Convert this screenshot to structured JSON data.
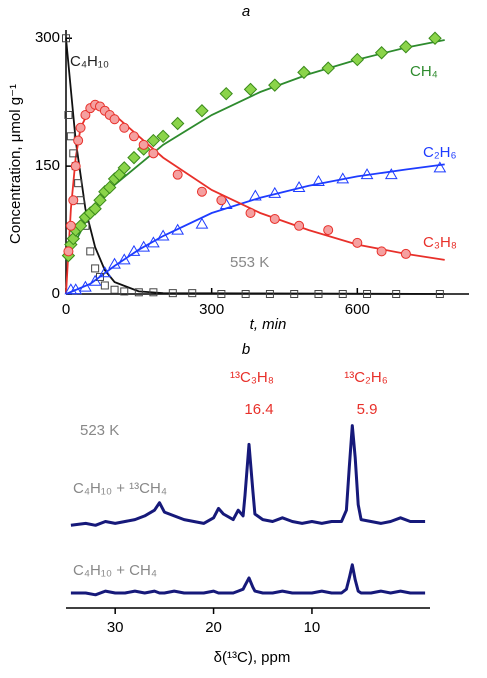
{
  "chart_data": [
    {
      "type": "scatter",
      "panel": "a",
      "xlabel": "t, min",
      "ylabel": "Concentration, μmol g⁻¹",
      "xlim": [
        0,
        830
      ],
      "ylim": [
        0,
        305
      ],
      "xticks": [
        0,
        300,
        600
      ],
      "yticks": [
        0,
        150,
        300
      ],
      "annotations": [
        "553 K"
      ],
      "series": [
        {
          "name": "C₄H₁₀",
          "color": "#111111",
          "marker": "square",
          "marker_color": "#bbbbbb",
          "x": [
            0,
            5,
            10,
            15,
            20,
            25,
            30,
            40,
            50,
            60,
            70,
            80,
            100,
            120,
            150,
            180,
            220,
            260,
            320,
            370,
            420,
            470,
            520,
            570,
            620,
            680,
            770
          ],
          "values": [
            300,
            210,
            185,
            165,
            150,
            130,
            110,
            80,
            50,
            30,
            20,
            10,
            5,
            3,
            2,
            2,
            1,
            1,
            0,
            0,
            0,
            0,
            0,
            0,
            0,
            0,
            0
          ]
        },
        {
          "name": "CH₄",
          "color": "#2e8b2e",
          "marker": "diamond",
          "marker_color": "#8bd44a",
          "x": [
            5,
            10,
            15,
            20,
            30,
            40,
            50,
            60,
            70,
            80,
            90,
            100,
            110,
            120,
            140,
            160,
            180,
            200,
            230,
            280,
            330,
            380,
            430,
            490,
            540,
            600,
            650,
            700,
            760
          ],
          "values": [
            45,
            58,
            65,
            75,
            80,
            90,
            95,
            100,
            110,
            120,
            125,
            135,
            140,
            148,
            160,
            170,
            180,
            185,
            200,
            215,
            235,
            240,
            245,
            260,
            265,
            275,
            283,
            290,
            300
          ]
        },
        {
          "name": "C₂H₆",
          "color": "#1e3cff",
          "marker": "triangle",
          "marker_color": "#ffffff",
          "x": [
            10,
            20,
            40,
            60,
            80,
            100,
            120,
            140,
            160,
            180,
            200,
            230,
            280,
            330,
            390,
            430,
            480,
            520,
            570,
            620,
            670,
            770
          ],
          "values": [
            5,
            5,
            8,
            15,
            25,
            35,
            40,
            50,
            55,
            60,
            68,
            75,
            82,
            105,
            115,
            118,
            125,
            132,
            135,
            140,
            140,
            148
          ]
        },
        {
          "name": "C₃H₈",
          "color": "#e8302a",
          "marker": "circle",
          "marker_color": "#f5a0a0",
          "x": [
            5,
            10,
            15,
            20,
            25,
            30,
            40,
            50,
            60,
            70,
            80,
            90,
            100,
            120,
            140,
            160,
            180,
            230,
            280,
            320,
            380,
            430,
            480,
            540,
            600,
            650,
            700
          ],
          "values": [
            50,
            80,
            110,
            150,
            180,
            195,
            210,
            218,
            222,
            220,
            215,
            210,
            205,
            195,
            185,
            175,
            165,
            140,
            120,
            110,
            95,
            88,
            80,
            75,
            60,
            50,
            47
          ]
        }
      ],
      "fits": [
        {
          "color": "#111111",
          "x": [
            0,
            20,
            40,
            60,
            80,
            100,
            150,
            200,
            780
          ],
          "values": [
            300,
            180,
            100,
            55,
            28,
            14,
            3,
            1,
            0
          ]
        },
        {
          "color": "#2e8b2e",
          "x": [
            0,
            50,
            100,
            200,
            300,
            400,
            500,
            600,
            700,
            780
          ],
          "values": [
            40,
            95,
            128,
            175,
            210,
            237,
            258,
            275,
            289,
            298
          ]
        },
        {
          "color": "#1e3cff",
          "x": [
            0,
            50,
            100,
            150,
            200,
            300,
            400,
            500,
            600,
            700,
            780
          ],
          "values": [
            0,
            12,
            33,
            52,
            68,
            95,
            113,
            127,
            138,
            146,
            152
          ]
        },
        {
          "color": "#e8302a",
          "x": [
            0,
            10,
            20,
            30,
            50,
            70,
            100,
            150,
            200,
            300,
            400,
            500,
            600,
            700,
            780
          ],
          "values": [
            0,
            100,
            160,
            195,
            218,
            220,
            210,
            185,
            160,
            122,
            95,
            75,
            58,
            47,
            40
          ]
        }
      ]
    },
    {
      "type": "line",
      "panel": "b",
      "xlabel": "δ(¹³C), ppm",
      "xlim": [
        35,
        -2
      ],
      "ylim": [
        0,
        100
      ],
      "xticks": [
        30,
        20,
        10
      ],
      "annotations": [
        "523 K",
        "¹³C₃H₈",
        "16.4",
        "¹³C₂H₆",
        "5.9"
      ],
      "annotation_color": "#e8302a",
      "x": [
        34.5,
        33,
        32,
        31,
        30,
        29,
        28,
        27,
        26,
        25.5,
        25,
        24,
        23,
        22,
        21,
        20,
        19.5,
        19,
        18,
        17.5,
        17,
        16.8,
        16.4,
        16,
        15.8,
        15,
        14,
        13,
        12,
        11,
        10,
        9,
        8,
        7,
        6.5,
        6.2,
        5.9,
        5.6,
        5.3,
        5,
        4,
        3,
        2,
        1,
        0,
        -1.5
      ],
      "series": [
        {
          "name": "C₄H₁₀ + ¹³CH₄",
          "color": "#16197a",
          "values": [
            44,
            45,
            44,
            46,
            45,
            46,
            47,
            49,
            52,
            56,
            51,
            49,
            47,
            46,
            45,
            48,
            53,
            50,
            47,
            52,
            49,
            60,
            87,
            62,
            50,
            47,
            46,
            48,
            46,
            45,
            46,
            45,
            46,
            46,
            52,
            75,
            97,
            80,
            55,
            47,
            46,
            45,
            46,
            48,
            46,
            46
          ]
        },
        {
          "name": "C₄H₁₀ + CH₄",
          "color": "#16197a",
          "values": [
            8,
            8,
            7,
            9,
            8,
            8,
            9,
            8,
            9,
            8,
            8,
            9,
            8,
            8,
            8,
            9,
            8,
            8,
            8,
            9,
            10,
            12,
            16,
            11,
            9,
            8,
            8,
            9,
            8,
            8,
            8,
            9,
            8,
            8,
            10,
            16,
            23,
            15,
            9,
            8,
            8,
            9,
            8,
            9,
            8,
            8
          ]
        }
      ]
    }
  ]
}
